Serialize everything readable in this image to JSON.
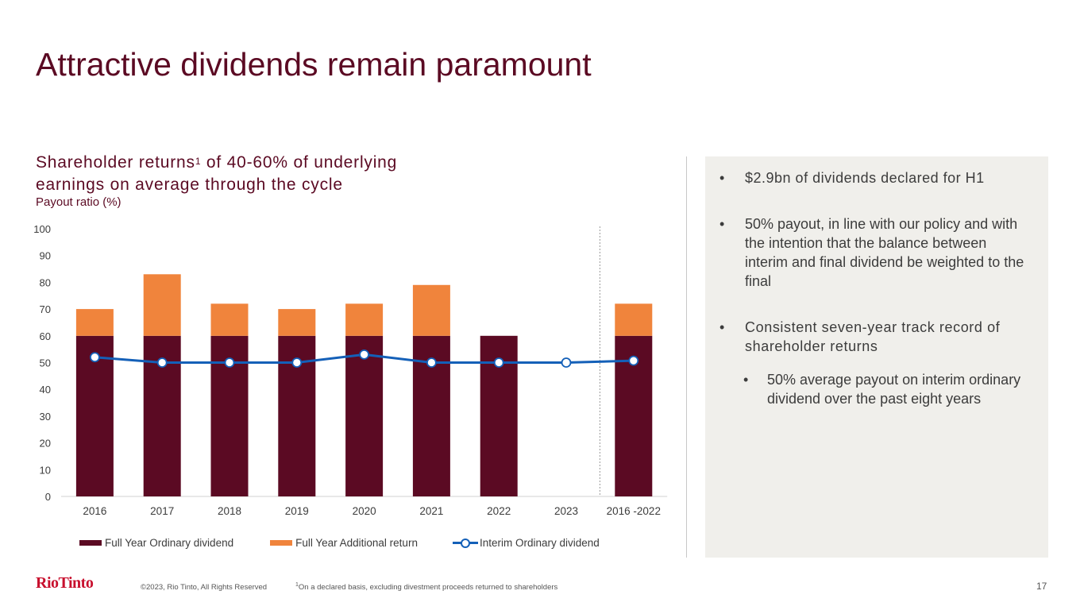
{
  "page": {
    "title": "Attractive dividends remain paramount",
    "chart_heading_a": "Shareholder returns",
    "chart_heading_sup": "1",
    "chart_heading_b": " of 40-60% of underlying earnings on average through the cycle",
    "chart_subtitle": "Payout ratio (%)",
    "page_number": "17"
  },
  "panel": {
    "bullet_char": "•",
    "bullets": [
      "$2.9bn of dividends declared for H1",
      "50% payout, in line with our policy and with the intention that the balance between interim and final dividend be weighted to the final",
      "Consistent seven-year track record of shareholder returns",
      "50% average payout on interim ordinary dividend over the past eight years"
    ]
  },
  "footer": {
    "logo": "RioTinto",
    "copyright": "©2023, Rio Tinto, All Rights Reserved",
    "footnote_sup": "1",
    "footnote": "On a declared basis, excluding divestment proceeds returned to shareholders"
  },
  "colors": {
    "title": "#5b0a23",
    "ordinary": "#5b0a23",
    "additional": "#f0843c",
    "interim": "#1460b8",
    "panel_bg": "#f0efeb",
    "logo": "#c8102e"
  },
  "chart_data": {
    "type": "bar",
    "stacked": true,
    "title": "Payout ratio (%)",
    "categories": [
      "2016",
      "2017",
      "2018",
      "2019",
      "2020",
      "2021",
      "2022",
      "2023",
      "2016 -2022"
    ],
    "series": [
      {
        "name": "Full Year Ordinary dividend",
        "kind": "bar",
        "values": [
          60,
          60,
          60,
          60,
          60,
          60,
          60,
          null,
          60
        ]
      },
      {
        "name": "Full Year Additional return",
        "kind": "bar",
        "values": [
          10,
          23,
          12,
          10,
          12,
          19,
          0,
          null,
          12
        ]
      },
      {
        "name": "Interim Ordinary dividend",
        "kind": "line",
        "values": [
          52,
          50,
          50,
          50,
          53,
          50,
          50,
          50,
          50.7
        ]
      }
    ],
    "ylim": [
      0,
      100
    ],
    "yticks": [
      0,
      10,
      20,
      30,
      40,
      50,
      60,
      70,
      80,
      90,
      100
    ],
    "xlabel": "",
    "ylabel": "",
    "separator_before_category": "2016 -2022",
    "legend_position": "bottom"
  }
}
